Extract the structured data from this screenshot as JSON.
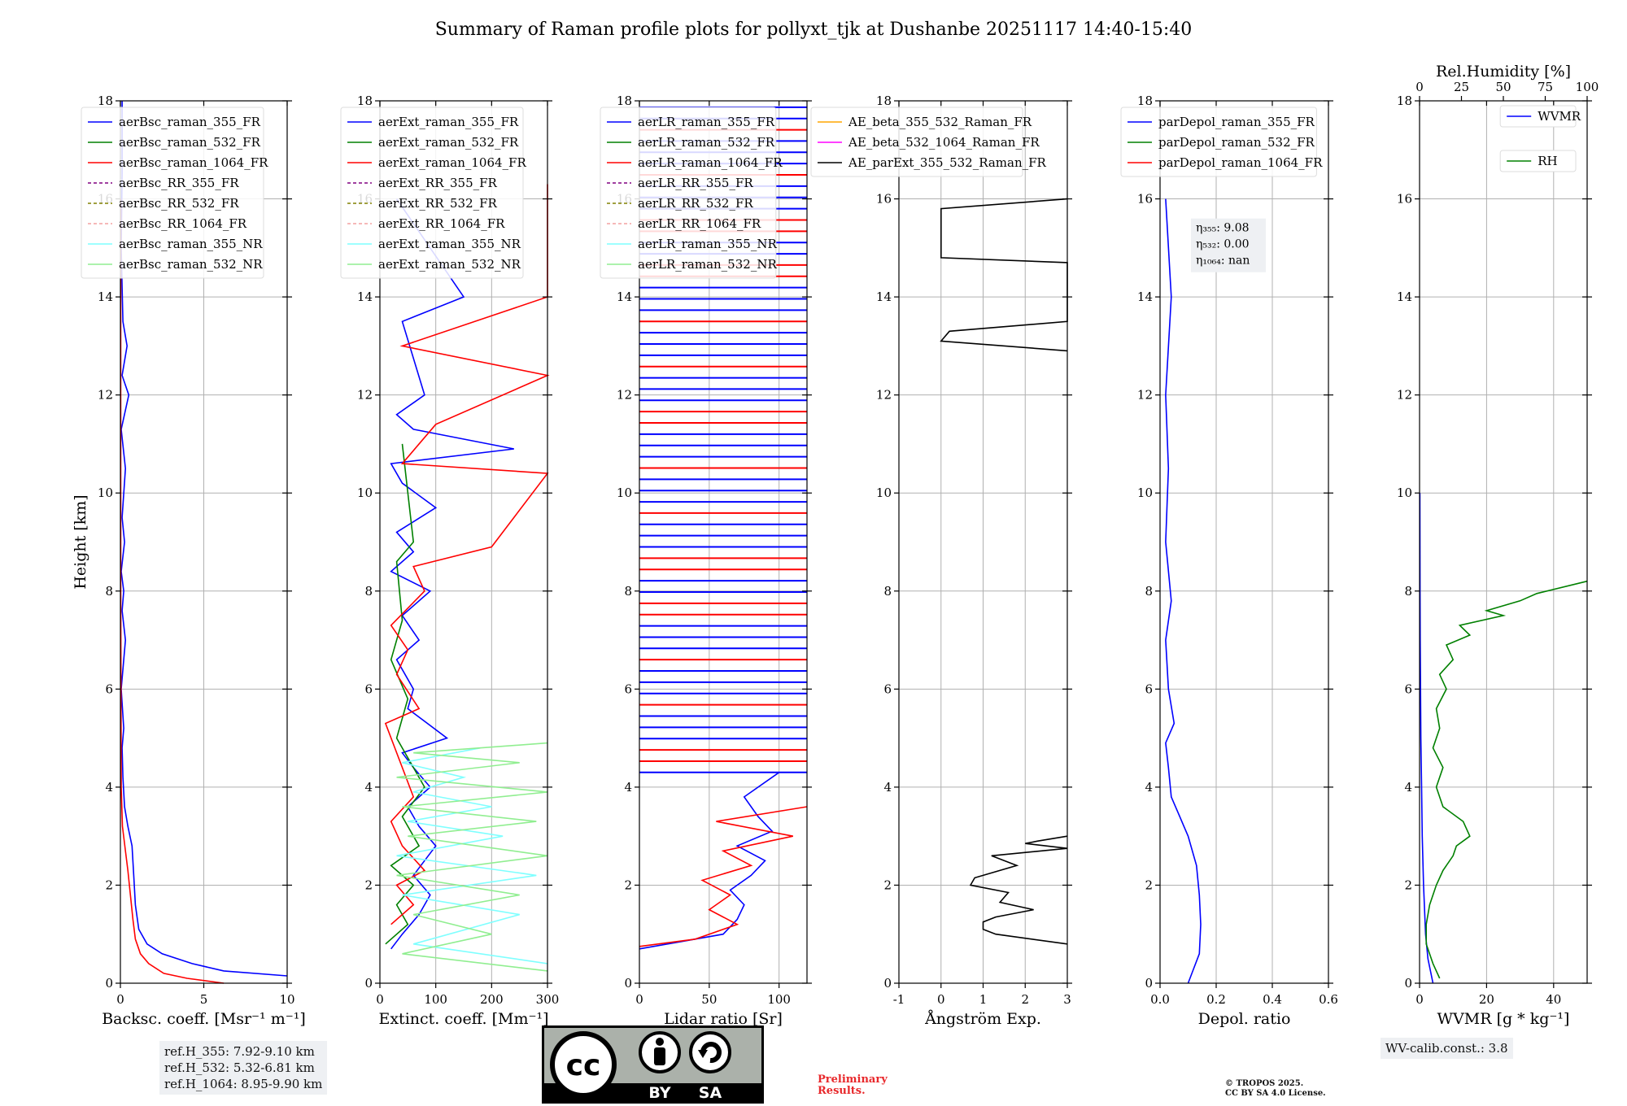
{
  "figure_title": "Summary of Raman profile plots for pollyxt_tjk at Dushanbe 20251117 14:40-15:40",
  "reference_heights": [
    "ref.H_355: 7.92-9.10 km",
    "ref.H_532: 5.32-6.81 km",
    "ref.H_1064: 8.95-9.90 km"
  ],
  "wv_calib": "WV-calib.const.: 3.8",
  "preliminary": [
    "Preliminary",
    "Results."
  ],
  "copyright": [
    "© TROPOS 2025.",
    "CC BY SA 4.0 License."
  ],
  "license_badge": {
    "label_by": "BY",
    "label_sa": "SA",
    "label_cc": "cc"
  },
  "colors": {
    "blue": "#0000ff",
    "green": "#008000",
    "red": "#ff0000",
    "purple": "#800080",
    "olive": "#808000",
    "salmon": "#f4a0a0",
    "cyan": "#7fffff",
    "lightgreen": "#90ee90",
    "orange": "#ffa500",
    "magenta": "#ff00ff",
    "black": "#000000",
    "grid": "#b0b0b0"
  },
  "chart_data": [
    {
      "type": "line",
      "xlabel": "Backsc. coeff. [Msr⁻¹ m⁻¹]",
      "ylabel": "Height [km]",
      "xlim": [
        0,
        10
      ],
      "ylim": [
        0,
        18
      ],
      "xticks": [
        0,
        5,
        10
      ],
      "yticks": [
        0,
        2,
        4,
        6,
        8,
        10,
        12,
        14,
        16,
        18
      ],
      "legend": [
        "aerBsc_raman_355_FR",
        "aerBsc_raman_532_FR",
        "aerBsc_raman_1064_FR",
        "aerBsc_RR_355_FR",
        "aerBsc_RR_532_FR",
        "aerBsc_RR_1064_FR",
        "aerBsc_raman_355_NR",
        "aerBsc_raman_532_NR"
      ],
      "legend_colors": [
        "blue",
        "green",
        "red",
        "purple",
        "olive",
        "salmon",
        "cyan",
        "lightgreen"
      ],
      "legend_dashed": [
        false,
        false,
        false,
        true,
        true,
        true,
        false,
        false
      ],
      "legend_position": "top-left",
      "series": [
        {
          "name": "aerBsc_raman_355_FR",
          "color": "blue",
          "x": [
            10,
            6.2,
            4.3,
            2.5,
            1.6,
            1.1,
            0.9,
            0.8,
            0.7,
            0.45,
            0.25,
            0.15,
            0.1,
            0.2,
            0.05,
            0.3,
            0.1,
            0.2,
            0.05,
            0.25,
            0.1,
            0.3,
            0.05,
            0.5,
            0.1,
            0.4,
            0.15,
            0.1,
            0.05,
            0.1,
            0.1
          ],
          "y": [
            0.15,
            0.25,
            0.4,
            0.6,
            0.8,
            1.1,
            1.6,
            2.2,
            2.8,
            3.2,
            3.6,
            4.2,
            4.8,
            5.2,
            6.0,
            7.0,
            7.6,
            8.0,
            8.4,
            9.0,
            9.5,
            10.5,
            11.3,
            12.0,
            12.4,
            13.0,
            13.5,
            14.2,
            15.0,
            16.5,
            18
          ]
        },
        {
          "name": "aerBsc_raman_1064_FR",
          "color": "red",
          "x": [
            6.2,
            4.0,
            2.6,
            1.7,
            1.2,
            0.9,
            0.75,
            0.6,
            0.45,
            0.3,
            0.12,
            0.05,
            0.02,
            0.02
          ],
          "y": [
            0,
            0.1,
            0.2,
            0.4,
            0.6,
            0.9,
            1.3,
            1.8,
            2.3,
            2.7,
            3.2,
            4.0,
            8.0,
            16.0
          ]
        }
      ]
    },
    {
      "type": "line",
      "xlabel": "Extinct. coeff. [Mm⁻¹]",
      "xlim": [
        0,
        300
      ],
      "ylim": [
        0,
        18
      ],
      "xticks": [
        0,
        100,
        200,
        300
      ],
      "yticks": [
        0,
        2,
        4,
        6,
        8,
        10,
        12,
        14,
        16,
        18
      ],
      "legend": [
        "aerExt_raman_355_FR",
        "aerExt_raman_532_FR",
        "aerExt_raman_1064_FR",
        "aerExt_RR_355_FR",
        "aerExt_RR_532_FR",
        "aerExt_RR_1064_FR",
        "aerExt_raman_355_NR",
        "aerExt_raman_532_NR"
      ],
      "legend_colors": [
        "blue",
        "green",
        "red",
        "purple",
        "olive",
        "salmon",
        "cyan",
        "lightgreen"
      ],
      "legend_dashed": [
        false,
        false,
        false,
        true,
        true,
        true,
        false,
        false
      ],
      "legend_position": "top-left",
      "series": [
        {
          "name": "aerExt_raman_355_FR",
          "color": "blue",
          "x": [
            20,
            40,
            70,
            90,
            60,
            80,
            100,
            70,
            50,
            90,
            60,
            40,
            120,
            50,
            60,
            30,
            70,
            40,
            90,
            20,
            60,
            30,
            100,
            40,
            20,
            240,
            60,
            30,
            80,
            40,
            150,
            30
          ],
          "y": [
            0.7,
            1.0,
            1.4,
            1.8,
            2.2,
            2.5,
            2.8,
            3.2,
            3.6,
            4.0,
            4.4,
            4.7,
            5.0,
            5.6,
            6.0,
            6.6,
            7.0,
            7.5,
            8.0,
            8.4,
            8.8,
            9.2,
            9.7,
            10.2,
            10.6,
            10.9,
            11.3,
            11.6,
            12.0,
            13.5,
            14.0,
            16.0
          ]
        },
        {
          "name": "aerExt_raman_532_FR",
          "color": "green",
          "x": [
            10,
            50,
            30,
            60,
            20,
            70,
            40,
            80,
            30,
            50,
            20,
            40,
            30,
            60,
            40
          ],
          "y": [
            0.8,
            1.2,
            1.6,
            2.0,
            2.4,
            2.8,
            3.4,
            4.0,
            5.0,
            5.8,
            6.6,
            7.4,
            8.6,
            9.0,
            11.0
          ]
        },
        {
          "name": "aerExt_raman_1064_FR",
          "color": "red",
          "x": [
            20,
            60,
            30,
            80,
            40,
            20,
            60,
            10,
            70,
            30,
            50,
            20,
            80,
            60,
            200,
            300,
            40,
            100,
            300,
            40,
            300,
            300,
            300
          ],
          "y": [
            1.2,
            1.6,
            2.0,
            2.3,
            2.8,
            3.3,
            3.8,
            5.3,
            5.6,
            6.3,
            6.8,
            7.3,
            8.0,
            8.5,
            8.9,
            10.4,
            10.6,
            11.4,
            12.4,
            13.0,
            14.0,
            15.0,
            16.3
          ]
        },
        {
          "name": "aerExt_raman_355_NR",
          "color": "cyan",
          "x": [
            300,
            60,
            250,
            40,
            280,
            30,
            220,
            50,
            200,
            60,
            150,
            40,
            180
          ],
          "y": [
            0.4,
            0.8,
            1.4,
            1.8,
            2.2,
            2.6,
            3.0,
            3.3,
            3.6,
            3.9,
            4.2,
            4.5,
            4.8
          ]
        },
        {
          "name": "aerExt_raman_532_NR",
          "color": "lightgreen",
          "x": [
            300,
            40,
            200,
            60,
            250,
            30,
            300,
            50,
            280,
            40,
            300,
            30,
            250,
            60,
            300
          ],
          "y": [
            0.25,
            0.6,
            1.0,
            1.4,
            1.8,
            2.2,
            2.6,
            3.0,
            3.3,
            3.6,
            3.9,
            4.2,
            4.5,
            4.7,
            4.9
          ]
        }
      ]
    },
    {
      "type": "line",
      "xlabel": "Lidar ratio [Sr]",
      "xlim": [
        0,
        120
      ],
      "ylim": [
        0,
        18
      ],
      "xticks": [
        0,
        50,
        100
      ],
      "yticks": [
        0,
        2,
        4,
        6,
        8,
        10,
        12,
        14,
        16,
        18
      ],
      "legend": [
        "aerLR_raman_355_FR",
        "aerLR_raman_532_FR",
        "aerLR_raman_1064_FR",
        "aerLR_RR_355_FR",
        "aerLR_RR_532_FR",
        "aerLR_RR_1064_FR",
        "aerLR_raman_355_NR",
        "aerLR_raman_532_NR"
      ],
      "legend_colors": [
        "blue",
        "green",
        "red",
        "purple",
        "olive",
        "salmon",
        "cyan",
        "lightgreen"
      ],
      "legend_dashed": [
        false,
        false,
        false,
        true,
        true,
        true,
        false,
        false
      ],
      "legend_position": "top-left",
      "series": [
        {
          "name": "aerLR_raman_355_FR",
          "color": "blue",
          "x": [
            0,
            30,
            60,
            70,
            75,
            65,
            80,
            90,
            70,
            95,
            85,
            75,
            100
          ],
          "y": [
            0.7,
            0.85,
            1.0,
            1.3,
            1.6,
            1.9,
            2.2,
            2.5,
            2.8,
            3.1,
            3.4,
            3.8,
            4.3
          ]
        },
        {
          "name": "aerLR_raman_1064_FR",
          "color": "red",
          "x": [
            0,
            40,
            70,
            50,
            65,
            45,
            80,
            60,
            110,
            55,
            120
          ],
          "y": [
            0.75,
            0.9,
            1.2,
            1.5,
            1.8,
            2.1,
            2.4,
            2.7,
            3.0,
            3.3,
            3.6
          ]
        }
      ],
      "striped_bands_km": [
        4.3,
        18
      ]
    },
    {
      "type": "line",
      "xlabel": "Ångström Exp.",
      "xlim": [
        -1,
        3
      ],
      "ylim": [
        0,
        18
      ],
      "xticks": [
        -1,
        0,
        1,
        2,
        3
      ],
      "yticks": [
        0,
        2,
        4,
        6,
        8,
        10,
        12,
        14,
        16,
        18
      ],
      "legend": [
        "AE_beta_355_532_Raman_FR",
        "AE_beta_532_1064_Raman_FR",
        "AE_parExt_355_532_Raman_FR"
      ],
      "legend_colors": [
        "orange",
        "magenta",
        "black"
      ],
      "legend_dashed": [
        false,
        false,
        false
      ],
      "legend_position": "top-left",
      "series": [
        {
          "name": "AE_parExt_355_532_Raman_FR",
          "color": "black",
          "x": [
            3,
            1.3,
            1.0,
            1.0,
            1.3,
            2.2,
            1.4,
            1.6,
            0.7,
            0.8,
            1.8,
            1.2,
            3,
            2.0,
            2.3,
            3
          ],
          "y": [
            0.8,
            1.0,
            1.1,
            1.25,
            1.35,
            1.5,
            1.65,
            1.85,
            2.0,
            2.15,
            2.4,
            2.6,
            2.75,
            2.85,
            2.9,
            3.0
          ]
        },
        {
          "name": "AE_parExt_355_532_Raman_FR_upper",
          "color": "black",
          "x": [
            3,
            0,
            0,
            3,
            3,
            0.2,
            0,
            3
          ],
          "y": [
            16.0,
            15.8,
            14.8,
            14.7,
            13.5,
            13.3,
            13.1,
            12.9
          ]
        }
      ]
    },
    {
      "type": "line",
      "xlabel": "Depol. ratio",
      "xlim": [
        0,
        0.6
      ],
      "ylim": [
        0,
        18
      ],
      "xticks": [
        0.0,
        0.2,
        0.4,
        0.6
      ],
      "yticks": [
        0,
        2,
        4,
        6,
        8,
        10,
        12,
        14,
        16,
        18
      ],
      "legend": [
        "parDepol_raman_355_FR",
        "parDepol_raman_532_FR",
        "parDepol_raman_1064_FR"
      ],
      "legend_colors": [
        "blue",
        "green",
        "red"
      ],
      "legend_dashed": [
        false,
        false,
        false
      ],
      "legend_position": "top-left",
      "eta_annotation": [
        "η₃₅₅: 9.08",
        "η₅₃₂: 0.00",
        "η₁₀₆₄: nan"
      ],
      "series": [
        {
          "name": "parDepol_raman_355_FR",
          "color": "blue",
          "x": [
            0.1,
            0.12,
            0.14,
            0.145,
            0.14,
            0.13,
            0.1,
            0.07,
            0.04,
            0.03,
            0.02,
            0.05,
            0.03,
            0.02,
            0.04,
            0.02,
            0.03,
            0.02,
            0.04,
            0.02
          ],
          "y": [
            0,
            0.3,
            0.6,
            1.2,
            1.8,
            2.4,
            3.0,
            3.4,
            3.8,
            4.4,
            4.9,
            5.3,
            6.0,
            7.0,
            7.8,
            9.0,
            10.5,
            12.0,
            14.0,
            16.0
          ]
        }
      ]
    },
    {
      "type": "line",
      "xlabel": "WVMR [g * kg⁻¹]",
      "x2label": "Rel.Humidity [%]",
      "xlim": [
        0,
        50
      ],
      "x2lim": [
        0,
        100
      ],
      "ylim": [
        0,
        18
      ],
      "xticks": [
        0,
        20,
        40
      ],
      "x2ticks": [
        0,
        25,
        50,
        75,
        100
      ],
      "yticks": [
        0,
        2,
        4,
        6,
        8,
        10,
        12,
        14,
        16,
        18
      ],
      "legend": [
        "WVMR",
        "RH"
      ],
      "legend_colors": [
        "blue",
        "green"
      ],
      "legend_position": "top-right",
      "series": [
        {
          "name": "WVMR",
          "color": "blue",
          "x": [
            4,
            2.5,
            1.8,
            1.2,
            0.8,
            0.6,
            0.4,
            0.3,
            0.2,
            0.15,
            0.1
          ],
          "y": [
            0,
            0.5,
            1.0,
            2.0,
            3.0,
            4.0,
            5.0,
            6.0,
            7.0,
            8.0,
            10.0
          ]
        },
        {
          "name": "RH",
          "color": "green",
          "x2": [
            12,
            8,
            4,
            4,
            6,
            10,
            14,
            20,
            22,
            30,
            26,
            14,
            10,
            14,
            8,
            12,
            10,
            16,
            12,
            20,
            16,
            30,
            24,
            50,
            40,
            60,
            70,
            100
          ],
          "y": [
            0.1,
            0.4,
            0.8,
            1.2,
            1.6,
            2.0,
            2.3,
            2.6,
            2.8,
            3.0,
            3.3,
            3.6,
            4.0,
            4.4,
            4.8,
            5.2,
            5.6,
            6.0,
            6.3,
            6.6,
            6.9,
            7.1,
            7.3,
            7.5,
            7.6,
            7.8,
            7.95,
            8.2
          ]
        }
      ]
    }
  ]
}
